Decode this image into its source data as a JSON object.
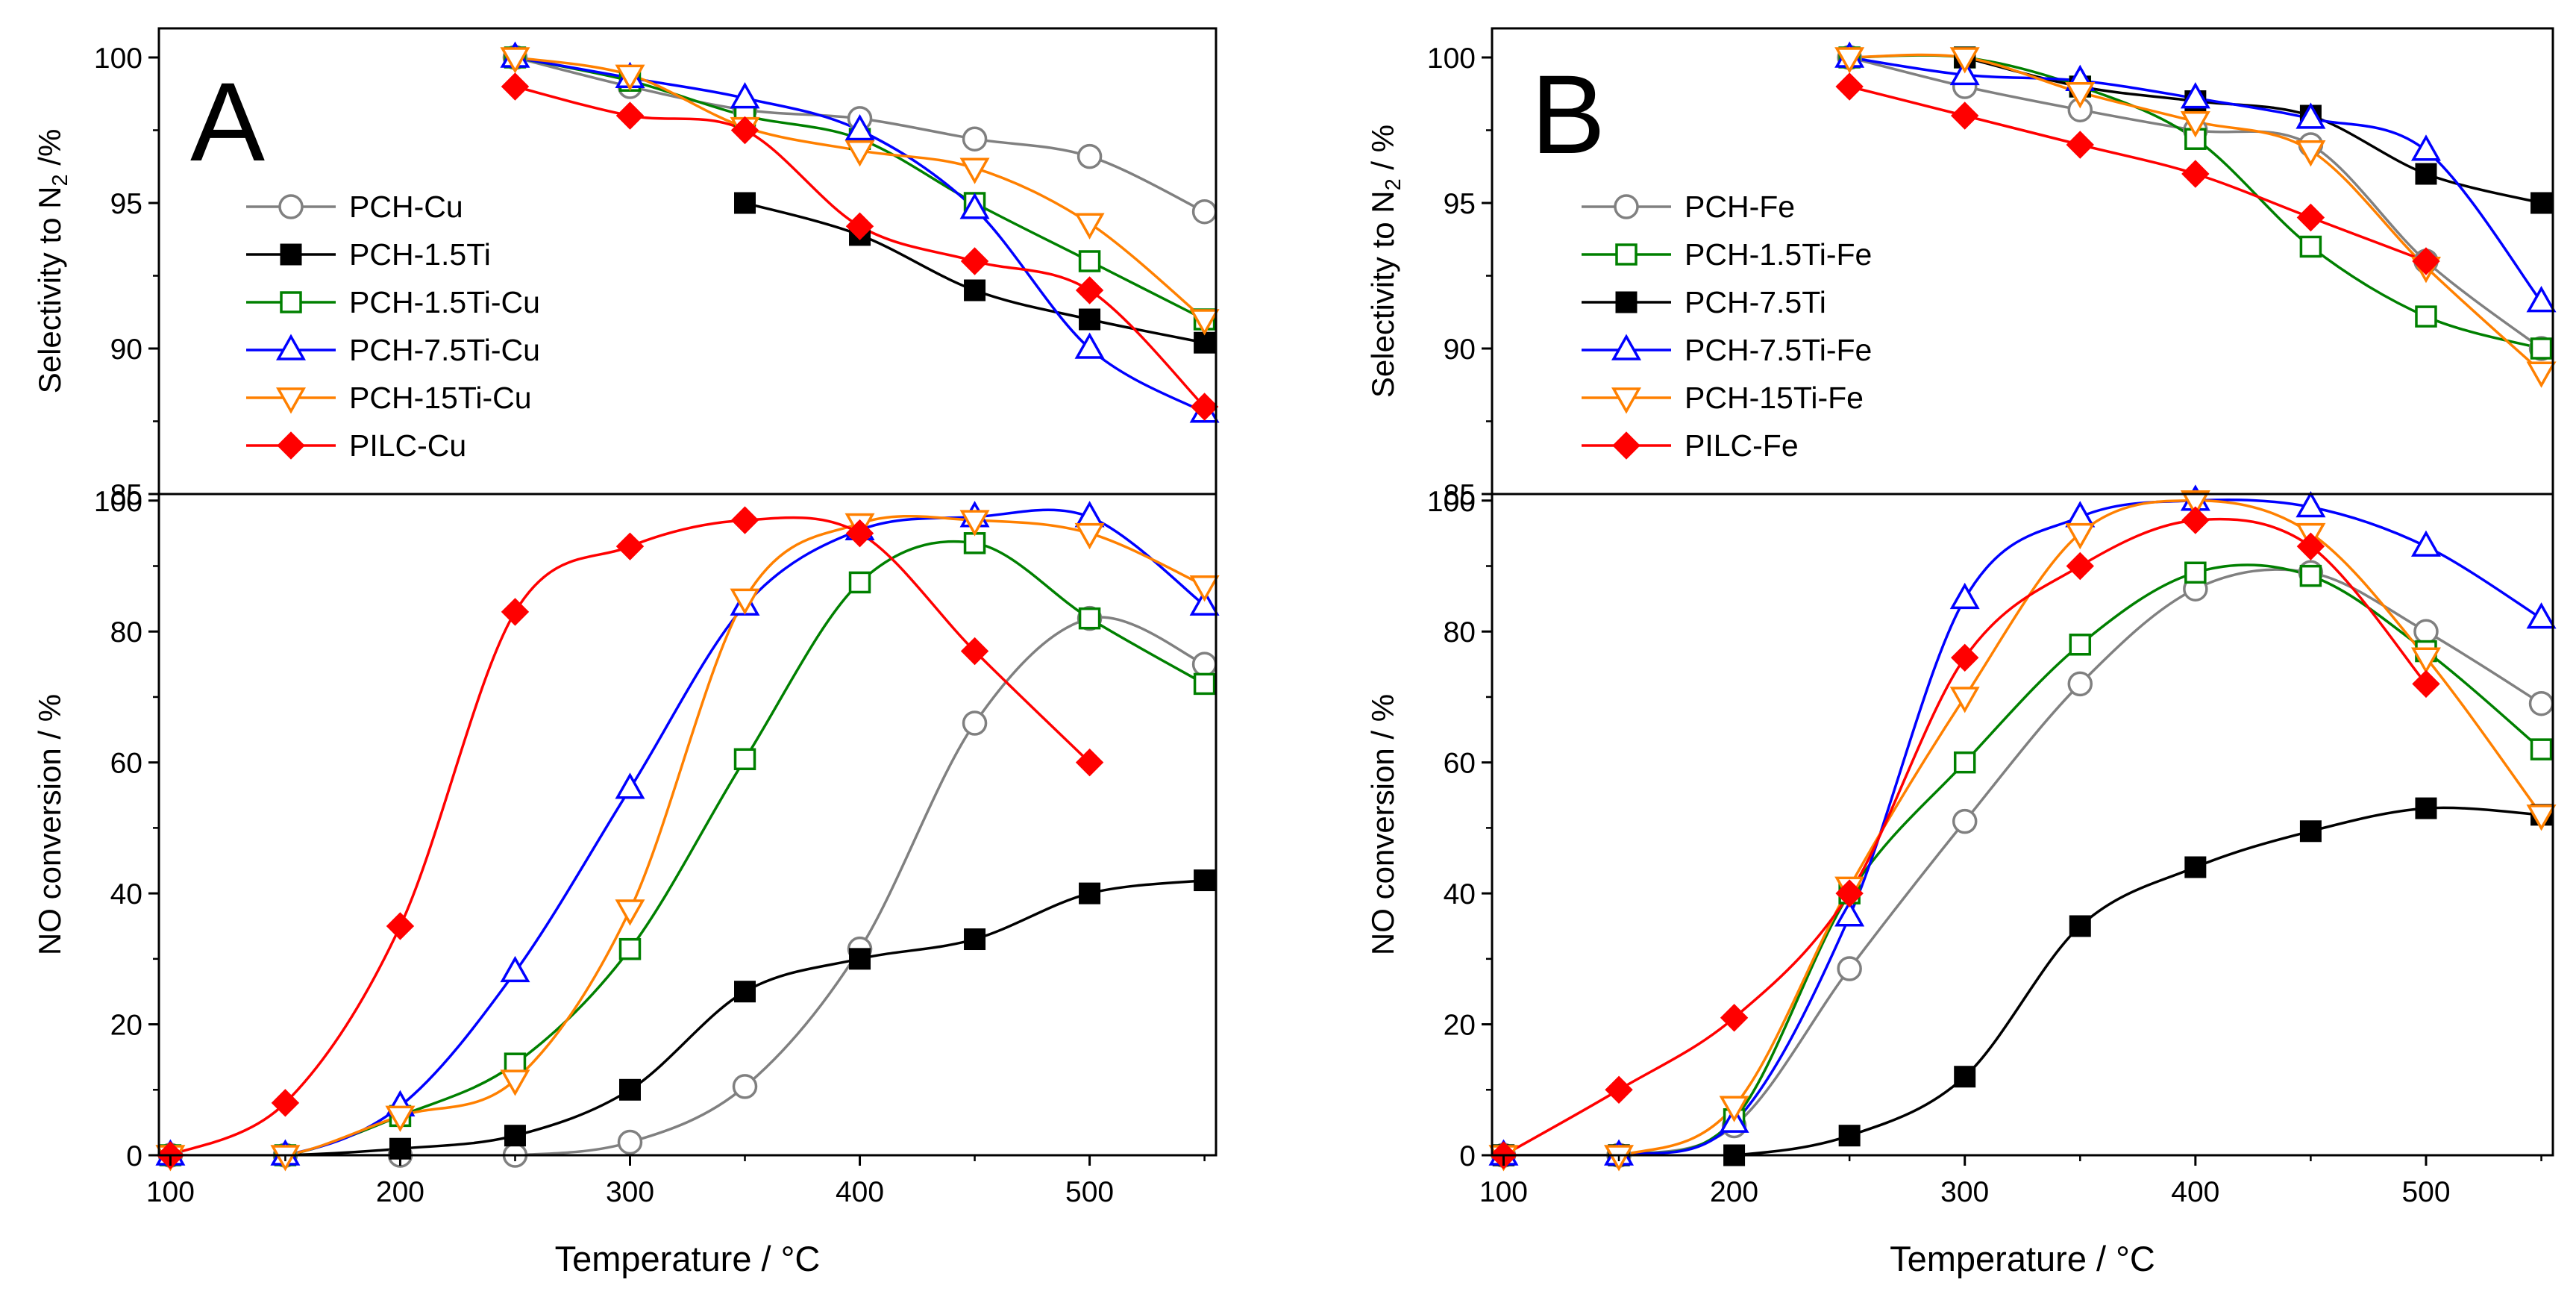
{
  "figure": {
    "panels": [
      {
        "letter": "A",
        "xlabel": "Temperature / °C",
        "x_ticks": [
          100,
          200,
          300,
          400,
          500
        ],
        "top": {
          "ylabel": "Selectivity to N",
          "ylabel_sub": "2",
          "ylabel_unit": " /%",
          "ylim": [
            85,
            101
          ],
          "y_ticks": [
            85,
            90,
            95,
            100
          ]
        },
        "bottom": {
          "ylabel": "NO conversion / %",
          "ylim": [
            0,
            101
          ],
          "y_ticks": [
            0,
            20,
            40,
            60,
            80,
            100
          ]
        }
      },
      {
        "letter": "B",
        "xlabel": "Temperature / °C",
        "x_ticks": [
          100,
          200,
          300,
          400,
          500
        ],
        "top": {
          "ylabel": "Selectivity to  N",
          "ylabel_sub": "2",
          "ylabel_unit": " / %",
          "ylim": [
            85,
            101
          ],
          "y_ticks": [
            85,
            90,
            95,
            100
          ]
        },
        "bottom": {
          "ylabel": "NO conversion / %",
          "ylim": [
            0,
            101
          ],
          "y_ticks": [
            0,
            20,
            40,
            60,
            80,
            100
          ]
        }
      }
    ]
  },
  "chart_data": [
    {
      "type": "line",
      "panel": "A",
      "title": "",
      "xlabel": "Temperature / °C",
      "xlim": [
        95,
        555
      ],
      "subplots": [
        {
          "name": "selectivity",
          "ylabel": "Selectivity to N2 /%",
          "ylim": [
            85,
            101
          ],
          "series": [
            {
              "name": "PCH-Cu",
              "color": "#808080",
              "marker": "circle-open",
              "x": [
                250,
                300,
                350,
                400,
                450,
                500,
                550
              ],
              "values": [
                100,
                99.0,
                98.2,
                97.9,
                97.2,
                96.6,
                94.7
              ]
            },
            {
              "name": "PCH-1.5Ti",
              "color": "#000000",
              "marker": "square-filled",
              "x": [
                350,
                400,
                450,
                500,
                550
              ],
              "values": [
                95.0,
                93.9,
                92.0,
                91.0,
                90.2
              ]
            },
            {
              "name": "PCH-1.5Ti-Cu",
              "color": "#008000",
              "marker": "square-open",
              "x": [
                250,
                300,
                350,
                400,
                450,
                500,
                550
              ],
              "values": [
                100,
                99.2,
                98.0,
                97.2,
                95.0,
                93.0,
                91.0
              ]
            },
            {
              "name": "PCH-7.5Ti-Cu",
              "color": "#0000ff",
              "marker": "triangle-open",
              "x": [
                250,
                300,
                350,
                400,
                450,
                500,
                550
              ],
              "values": [
                100,
                99.3,
                98.6,
                97.5,
                94.8,
                90.0,
                87.8
              ]
            },
            {
              "name": "PCH-15Ti-Cu",
              "color": "#ff8000",
              "marker": "triangle-down-open",
              "x": [
                250,
                300,
                350,
                400,
                450,
                500,
                550
              ],
              "values": [
                100,
                99.4,
                97.6,
                96.8,
                96.2,
                94.3,
                91.0
              ]
            },
            {
              "name": "PILC-Cu",
              "color": "#ff0000",
              "marker": "diamond-filled",
              "x": [
                250,
                300,
                350,
                400,
                450,
                500,
                550
              ],
              "values": [
                99.0,
                98.0,
                97.5,
                94.2,
                93.0,
                92.0,
                88.0
              ]
            }
          ]
        },
        {
          "name": "conversion",
          "ylabel": "NO conversion / %",
          "ylim": [
            0,
            101
          ],
          "series": [
            {
              "name": "PCH-Cu",
              "color": "#808080",
              "marker": "circle-open",
              "x": [
                100,
                150,
                200,
                250,
                300,
                350,
                400,
                450,
                500,
                550
              ],
              "values": [
                0,
                0,
                0,
                0,
                2,
                10.5,
                31.5,
                66,
                82,
                75
              ]
            },
            {
              "name": "PCH-1.5Ti",
              "color": "#000000",
              "marker": "square-filled",
              "x": [
                100,
                150,
                200,
                250,
                300,
                350,
                400,
                450,
                500,
                550
              ],
              "values": [
                0,
                0,
                1,
                3,
                10,
                25,
                30,
                33,
                40,
                42
              ]
            },
            {
              "name": "PCH-1.5Ti-Cu",
              "color": "#008000",
              "marker": "square-open",
              "x": [
                100,
                150,
                200,
                250,
                300,
                350,
                400,
                450,
                500,
                550
              ],
              "values": [
                0,
                0,
                6,
                14,
                31.5,
                60.5,
                87.5,
                93.5,
                82,
                72
              ]
            },
            {
              "name": "PCH-7.5Ti-Cu",
              "color": "#0000ff",
              "marker": "triangle-open",
              "x": [
                100,
                150,
                200,
                250,
                300,
                350,
                400,
                450,
                500,
                550
              ],
              "values": [
                0,
                0,
                7.5,
                28,
                56,
                84,
                95.5,
                97.5,
                97.5,
                84
              ]
            },
            {
              "name": "PCH-15Ti-Cu",
              "color": "#ff8000",
              "marker": "triangle-down-open",
              "x": [
                100,
                150,
                200,
                250,
                300,
                350,
                400,
                450,
                500,
                550
              ],
              "values": [
                0,
                0,
                6,
                11.5,
                37.5,
                85,
                96.5,
                97,
                95,
                87
              ]
            },
            {
              "name": "PILC-Cu",
              "color": "#ff0000",
              "marker": "diamond-filled",
              "x": [
                100,
                150,
                200,
                250,
                300,
                350,
                400,
                450,
                500
              ],
              "values": [
                0,
                8,
                35,
                83,
                93,
                97,
                95,
                77,
                60
              ]
            }
          ]
        }
      ],
      "legend": {
        "position": "top-left",
        "entries": [
          "PCH-Cu",
          "PCH-1.5Ti",
          "PCH-1.5Ti-Cu",
          "PCH-7.5Ti-Cu",
          "PCH-15Ti-Cu",
          "PILC-Cu"
        ]
      }
    },
    {
      "type": "line",
      "panel": "B",
      "title": "",
      "xlabel": "Temperature / °C",
      "xlim": [
        95,
        555
      ],
      "subplots": [
        {
          "name": "selectivity",
          "ylabel": "Selectivity to N2 / %",
          "ylim": [
            85,
            101
          ],
          "series": [
            {
              "name": "PCH-Fe",
              "color": "#808080",
              "marker": "circle-open",
              "x": [
                250,
                300,
                350,
                400,
                450,
                500,
                550
              ],
              "values": [
                100,
                99.0,
                98.2,
                97.5,
                97.0,
                93.0,
                90.0
              ]
            },
            {
              "name": "PCH-1.5Ti-Fe",
              "color": "#008000",
              "marker": "square-open",
              "x": [
                250,
                300,
                350,
                400,
                450,
                500,
                550
              ],
              "values": [
                100,
                100,
                99.0,
                97.2,
                93.5,
                91.1,
                90.0
              ]
            },
            {
              "name": "PCH-7.5Ti",
              "color": "#000000",
              "marker": "square-filled",
              "x": [
                300,
                350,
                400,
                450,
                500,
                550
              ],
              "values": [
                100,
                99.0,
                98.5,
                98.0,
                96.0,
                95.0
              ]
            },
            {
              "name": "PCH-7.5Ti-Fe",
              "color": "#0000ff",
              "marker": "triangle-open",
              "x": [
                250,
                300,
                350,
                400,
                450,
                500,
                550
              ],
              "values": [
                100,
                99.4,
                99.2,
                98.6,
                97.9,
                96.8,
                91.6
              ]
            },
            {
              "name": "PCH-15Ti-Fe",
              "color": "#ff8000",
              "marker": "triangle-down-open",
              "x": [
                250,
                300,
                350,
                400,
                450,
                500,
                550
              ],
              "values": [
                100,
                100,
                98.8,
                97.8,
                96.8,
                92.8,
                89.2
              ]
            },
            {
              "name": "PILC-Fe",
              "color": "#ff0000",
              "marker": "diamond-filled",
              "x": [
                250,
                300,
                350,
                400,
                450,
                500
              ],
              "values": [
                99.0,
                98.0,
                97.0,
                96.0,
                94.5,
                93.0
              ]
            }
          ]
        },
        {
          "name": "conversion",
          "ylabel": "NO conversion / %",
          "ylim": [
            0,
            101
          ],
          "series": [
            {
              "name": "PCH-Fe",
              "color": "#808080",
              "marker": "circle-open",
              "x": [
                100,
                150,
                200,
                250,
                300,
                350,
                400,
                450,
                500,
                550
              ],
              "values": [
                0,
                0,
                4.5,
                28.5,
                51,
                72,
                86.5,
                89,
                80,
                69
              ]
            },
            {
              "name": "PCH-1.5Ti-Fe",
              "color": "#008000",
              "marker": "square-open",
              "x": [
                100,
                150,
                200,
                250,
                300,
                350,
                400,
                450,
                500,
                550
              ],
              "values": [
                0,
                0,
                5.5,
                40,
                60,
                78,
                89,
                88.5,
                77,
                62
              ]
            },
            {
              "name": "PCH-7.5Ti",
              "color": "#000000",
              "marker": "square-filled",
              "x": [
                100,
                150,
                200,
                250,
                300,
                350,
                400,
                450,
                500,
                550
              ],
              "values": [
                0,
                0,
                0,
                3,
                12,
                35,
                44,
                49.5,
                53,
                52
              ]
            },
            {
              "name": "PCH-7.5Ti-Fe",
              "color": "#0000ff",
              "marker": "triangle-open",
              "x": [
                100,
                150,
                200,
                250,
                300,
                350,
                400,
                450,
                500,
                550
              ],
              "values": [
                0,
                0,
                5,
                36.5,
                85,
                97.5,
                100,
                99,
                93,
                82
              ]
            },
            {
              "name": "PCH-15Ti-Fe",
              "color": "#ff8000",
              "marker": "triangle-down-open",
              "x": [
                100,
                150,
                200,
                250,
                300,
                350,
                400,
                450,
                500,
                550
              ],
              "values": [
                0,
                0,
                7.5,
                41,
                70,
                95,
                100,
                95,
                76,
                52
              ]
            },
            {
              "name": "PILC-Fe",
              "color": "#ff0000",
              "marker": "diamond-filled",
              "x": [
                100,
                150,
                200,
                250,
                300,
                350,
                400,
                450,
                500
              ],
              "values": [
                0,
                10,
                21,
                40,
                76,
                90,
                97,
                93,
                72
              ]
            }
          ]
        }
      ],
      "legend": {
        "position": "top-left",
        "entries": [
          "PCH-Fe",
          "PCH-1.5Ti-Fe",
          "PCH-7.5Ti",
          "PCH-7.5Ti-Fe",
          "PCH-15Ti-Fe",
          "PILC-Fe"
        ]
      }
    }
  ]
}
